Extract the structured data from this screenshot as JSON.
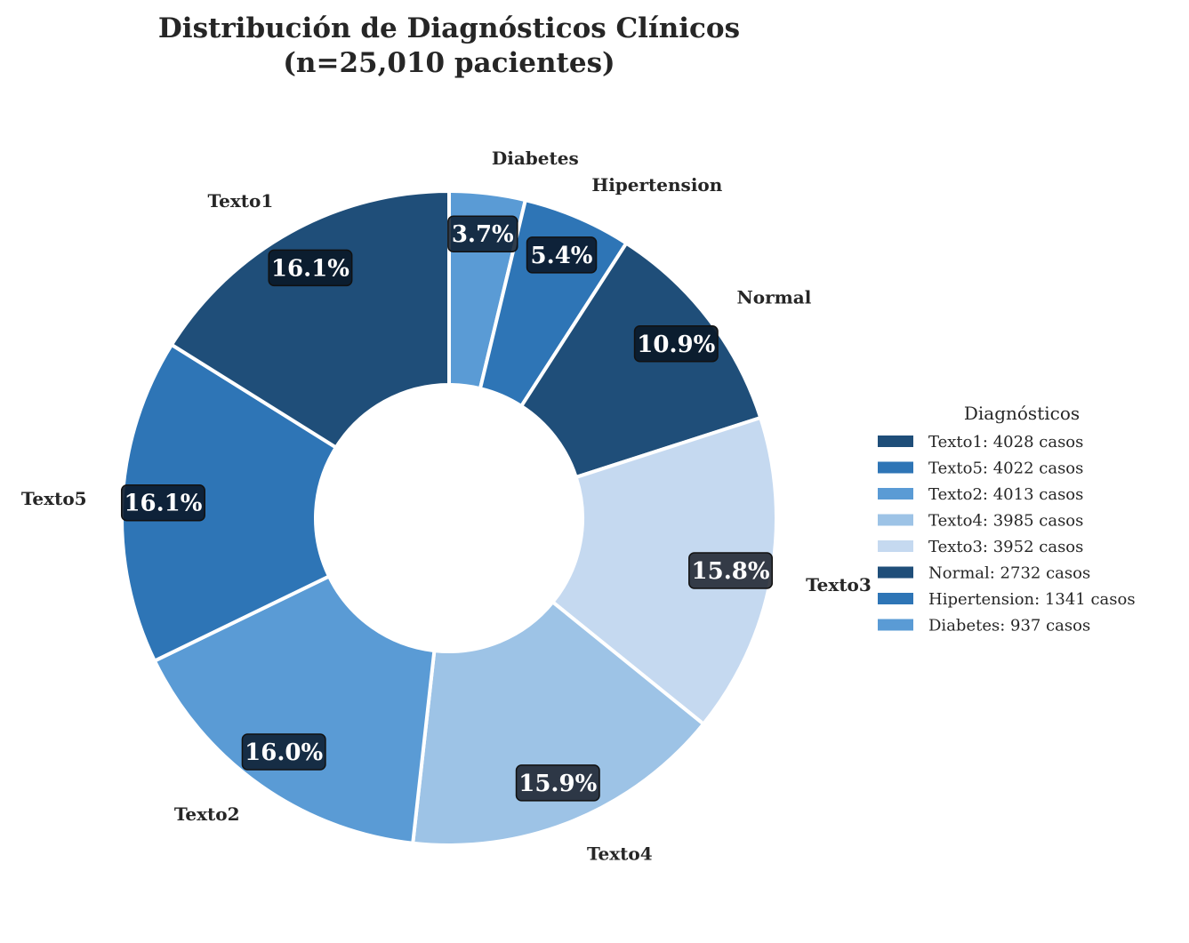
{
  "chart_data": {
    "type": "pie",
    "donut": true,
    "title": "Distribución de Diagnósticos Clínicos",
    "subtitle": "(n=25,010 pacientes)",
    "start_angle_deg": 90,
    "direction": "clockwise",
    "slices": [
      {
        "label": "Diabetes",
        "value": 937,
        "pct_label": "3.7%",
        "color": "#5a9bd5",
        "box_color": "#0b1a2b",
        "box_alpha": 0.85
      },
      {
        "label": "Hipertension",
        "value": 1341,
        "pct_label": "5.4%",
        "color": "#2e75b6",
        "box_color": "#0b1a2b",
        "box_alpha": 0.9
      },
      {
        "label": "Normal",
        "value": 2732,
        "pct_label": "10.9%",
        "color": "#1f4e79",
        "box_color": "#0b1a2b",
        "box_alpha": 0.95
      },
      {
        "label": "Texto3",
        "value": 3952,
        "pct_label": "15.8%",
        "color": "#c5d9f0",
        "box_color": "#1a1f29",
        "box_alpha": 0.85
      },
      {
        "label": "Texto4",
        "value": 3985,
        "pct_label": "15.9%",
        "color": "#9dc3e6",
        "box_color": "#1a1f29",
        "box_alpha": 0.85
      },
      {
        "label": "Texto2",
        "value": 4013,
        "pct_label": "16.0%",
        "color": "#5a9bd5",
        "box_color": "#0b1a2b",
        "box_alpha": 0.85
      },
      {
        "label": "Texto5",
        "value": 4022,
        "pct_label": "16.1%",
        "color": "#2e75b6",
        "box_color": "#0b1a2b",
        "box_alpha": 0.9
      },
      {
        "label": "Texto1",
        "value": 4028,
        "pct_label": "16.1%",
        "color": "#1f4e79",
        "box_color": "#0b1a2b",
        "box_alpha": 0.95
      }
    ],
    "legend": {
      "title": "Diagnósticos",
      "placement": "right",
      "entries": [
        {
          "text": "Texto1: 4028 casos",
          "color": "#1f4e79"
        },
        {
          "text": "Texto5: 4022 casos",
          "color": "#2e75b6"
        },
        {
          "text": "Texto2: 4013 casos",
          "color": "#5a9bd5"
        },
        {
          "text": "Texto4: 3985 casos",
          "color": "#9dc3e6"
        },
        {
          "text": "Texto3: 3952 casos",
          "color": "#c5d9f0"
        },
        {
          "text": "Normal: 2732 casos",
          "color": "#1f4e79"
        },
        {
          "text": "Hipertension: 1341 casos",
          "color": "#2e75b6"
        },
        {
          "text": "Diabetes: 937 casos",
          "color": "#5a9bd5"
        }
      ]
    }
  }
}
